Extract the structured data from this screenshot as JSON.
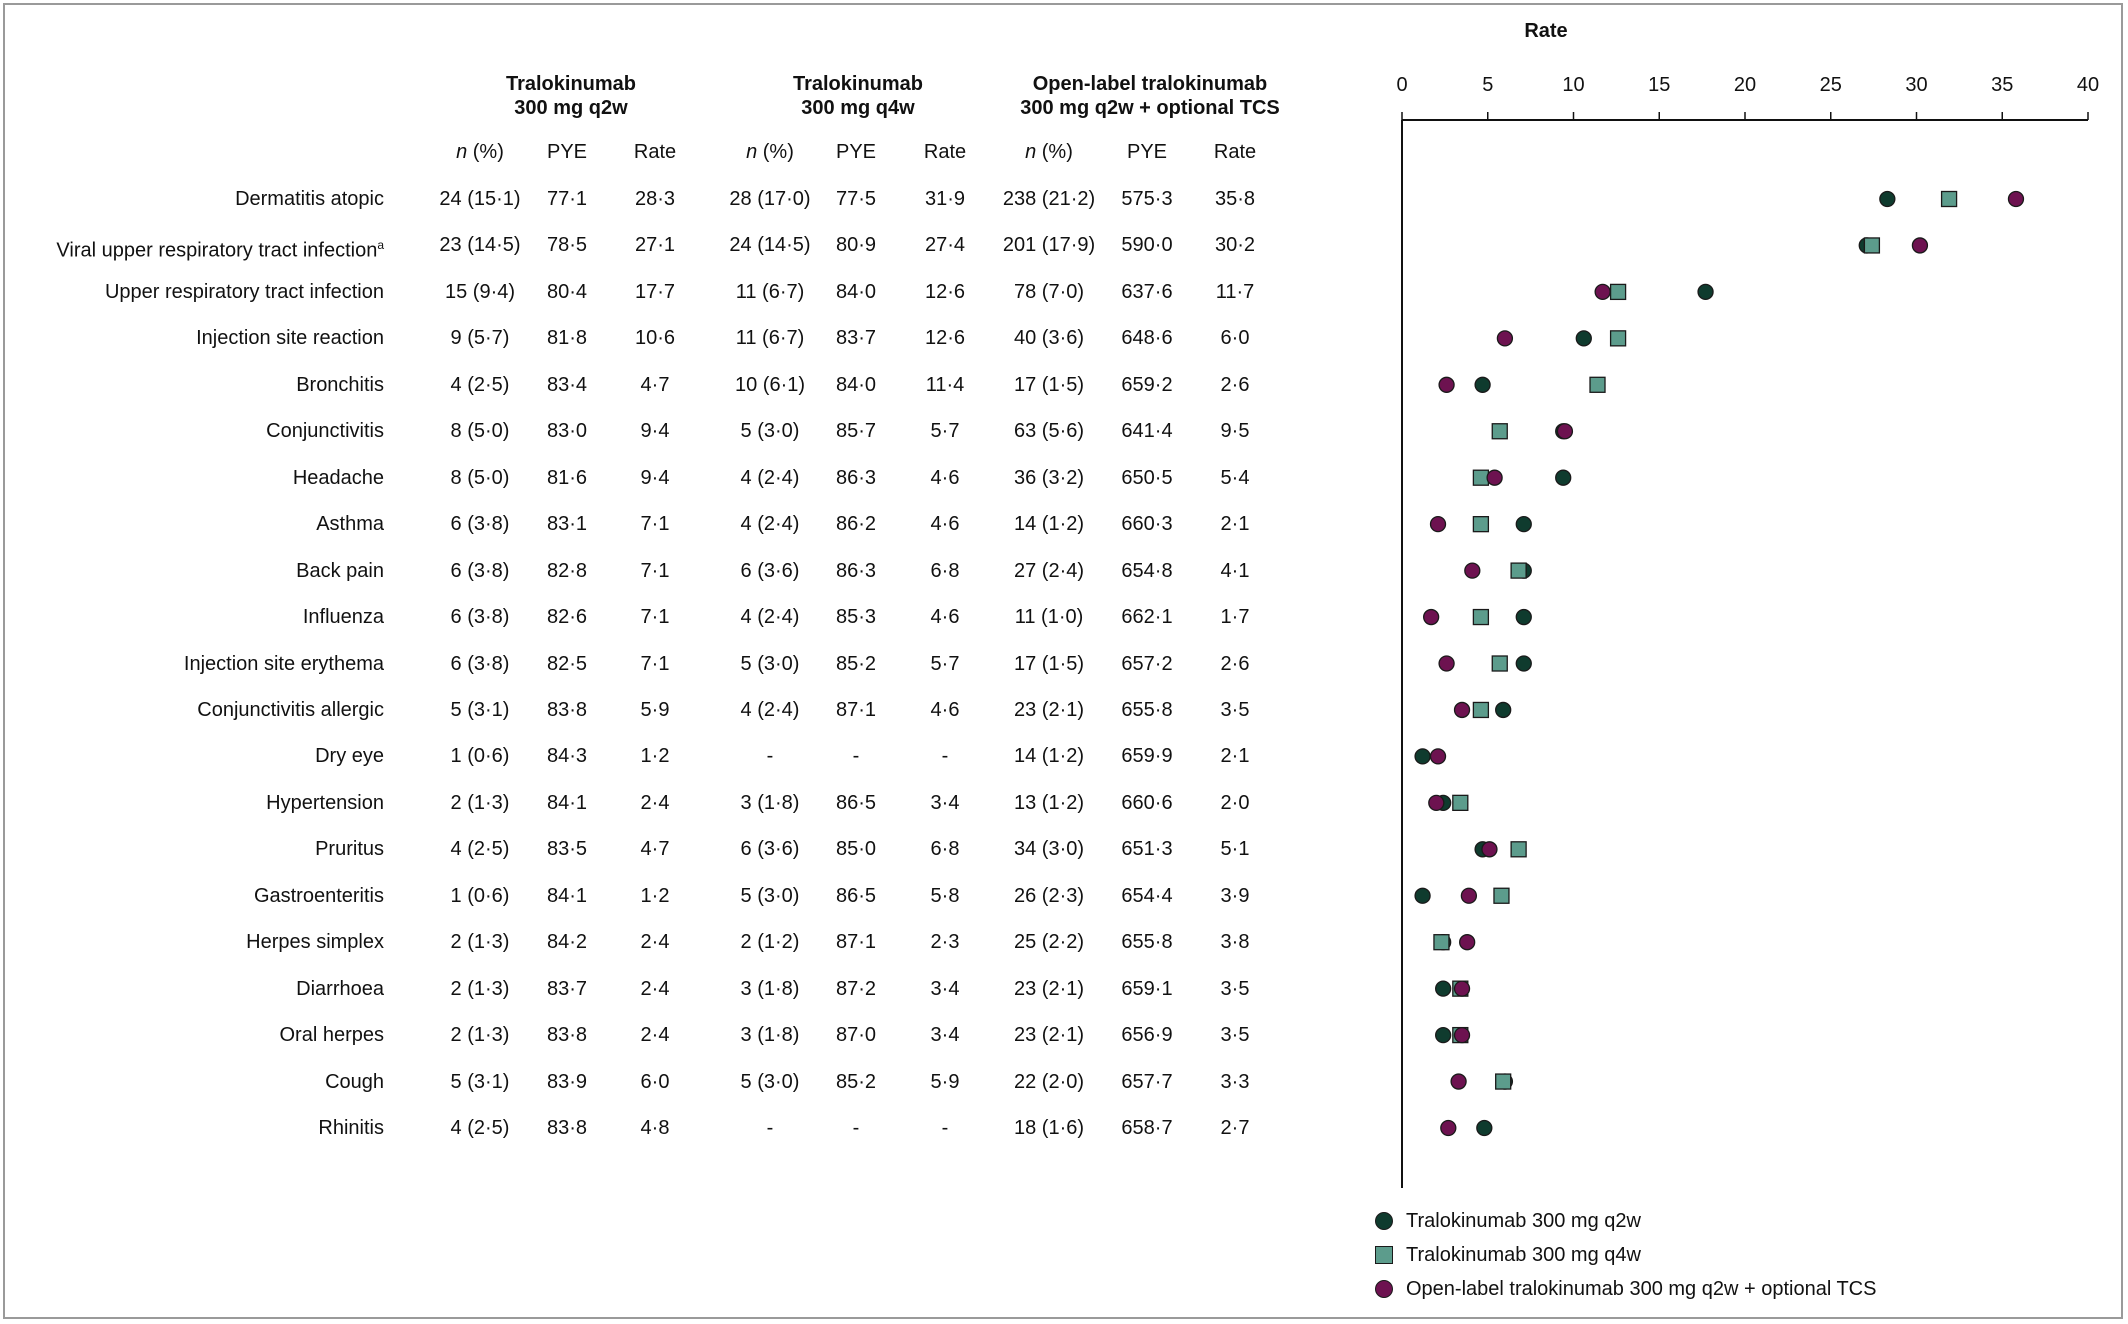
{
  "groups": [
    {
      "title": "Tralokinumab",
      "subtitle": "300 mg q2w"
    },
    {
      "title": "Tralokinumab",
      "subtitle": "300 mg q4w"
    },
    {
      "title": "Open-label tralokinumab",
      "subtitle": "300 mg q2w + optional TCS"
    }
  ],
  "column_headers": {
    "n": "n",
    "pct": " (%)",
    "pye": "PYE",
    "rate": "Rate"
  },
  "rows": [
    {
      "label": "Dermatitis atopic",
      "sup": "",
      "q2w": [
        "24 (15·1)",
        "77·1",
        "28·3"
      ],
      "q4w": [
        "28 (17·0)",
        "77·5",
        "31·9"
      ],
      "ol": [
        "238 (21·2)",
        "575·3",
        "35·8"
      ]
    },
    {
      "label": "Viral upper respiratory tract infection",
      "sup": "a",
      "q2w": [
        "23 (14·5)",
        "78·5",
        "27·1"
      ],
      "q4w": [
        "24 (14·5)",
        "80·9",
        "27·4"
      ],
      "ol": [
        "201 (17·9)",
        "590·0",
        "30·2"
      ]
    },
    {
      "label": "Upper respiratory tract infection",
      "sup": "",
      "q2w": [
        "15 (9·4)",
        "80·4",
        "17·7"
      ],
      "q4w": [
        "11 (6·7)",
        "84·0",
        "12·6"
      ],
      "ol": [
        "78 (7·0)",
        "637·6",
        "11·7"
      ]
    },
    {
      "label": "Injection site reaction",
      "sup": "",
      "q2w": [
        "9 (5·7)",
        "81·8",
        "10·6"
      ],
      "q4w": [
        "11 (6·7)",
        "83·7",
        "12·6"
      ],
      "ol": [
        "40 (3·6)",
        "648·6",
        "6·0"
      ]
    },
    {
      "label": "Bronchitis",
      "sup": "",
      "q2w": [
        "4 (2·5)",
        "83·4",
        "4·7"
      ],
      "q4w": [
        "10 (6·1)",
        "84·0",
        "11·4"
      ],
      "ol": [
        "17 (1·5)",
        "659·2",
        "2·6"
      ]
    },
    {
      "label": "Conjunctivitis",
      "sup": "",
      "q2w": [
        "8 (5·0)",
        "83·0",
        "9·4"
      ],
      "q4w": [
        "5 (3·0)",
        "85·7",
        "5·7"
      ],
      "ol": [
        "63 (5·6)",
        "641·4",
        "9·5"
      ]
    },
    {
      "label": "Headache",
      "sup": "",
      "q2w": [
        "8 (5·0)",
        "81·6",
        "9·4"
      ],
      "q4w": [
        "4 (2·4)",
        "86·3",
        "4·6"
      ],
      "ol": [
        "36 (3·2)",
        "650·5",
        "5·4"
      ]
    },
    {
      "label": "Asthma",
      "sup": "",
      "q2w": [
        "6 (3·8)",
        "83·1",
        "7·1"
      ],
      "q4w": [
        "4 (2·4)",
        "86·2",
        "4·6"
      ],
      "ol": [
        "14 (1·2)",
        "660·3",
        "2·1"
      ]
    },
    {
      "label": "Back pain",
      "sup": "",
      "q2w": [
        "6 (3·8)",
        "82·8",
        "7·1"
      ],
      "q4w": [
        "6 (3·6)",
        "86·3",
        "6·8"
      ],
      "ol": [
        "27 (2·4)",
        "654·8",
        "4·1"
      ]
    },
    {
      "label": "Influenza",
      "sup": "",
      "q2w": [
        "6 (3·8)",
        "82·6",
        "7·1"
      ],
      "q4w": [
        "4 (2·4)",
        "85·3",
        "4·6"
      ],
      "ol": [
        "11 (1·0)",
        "662·1",
        "1·7"
      ]
    },
    {
      "label": "Injection site erythema",
      "sup": "",
      "q2w": [
        "6 (3·8)",
        "82·5",
        "7·1"
      ],
      "q4w": [
        "5 (3·0)",
        "85·2",
        "5·7"
      ],
      "ol": [
        "17 (1·5)",
        "657·2",
        "2·6"
      ]
    },
    {
      "label": "Conjunctivitis allergic",
      "sup": "",
      "q2w": [
        "5 (3·1)",
        "83·8",
        "5·9"
      ],
      "q4w": [
        "4 (2·4)",
        "87·1",
        "4·6"
      ],
      "ol": [
        "23 (2·1)",
        "655·8",
        "3·5"
      ]
    },
    {
      "label": "Dry eye",
      "sup": "",
      "q2w": [
        "1 (0·6)",
        "84·3",
        "1·2"
      ],
      "q4w": [
        "-",
        "-",
        "-"
      ],
      "ol": [
        "14 (1·2)",
        "659·9",
        "2·1"
      ]
    },
    {
      "label": "Hypertension",
      "sup": "",
      "q2w": [
        "2 (1·3)",
        "84·1",
        "2·4"
      ],
      "q4w": [
        "3 (1·8)",
        "86·5",
        "3·4"
      ],
      "ol": [
        "13 (1·2)",
        "660·6",
        "2·0"
      ]
    },
    {
      "label": "Pruritus",
      "sup": "",
      "q2w": [
        "4 (2·5)",
        "83·5",
        "4·7"
      ],
      "q4w": [
        "6 (3·6)",
        "85·0",
        "6·8"
      ],
      "ol": [
        "34 (3·0)",
        "651·3",
        "5·1"
      ]
    },
    {
      "label": "Gastroenteritis",
      "sup": "",
      "q2w": [
        "1 (0·6)",
        "84·1",
        "1·2"
      ],
      "q4w": [
        "5 (3·0)",
        "86·5",
        "5·8"
      ],
      "ol": [
        "26 (2·3)",
        "654·4",
        "3·9"
      ]
    },
    {
      "label": "Herpes simplex",
      "sup": "",
      "q2w": [
        "2 (1·3)",
        "84·2",
        "2·4"
      ],
      "q4w": [
        "2 (1·2)",
        "87·1",
        "2·3"
      ],
      "ol": [
        "25 (2·2)",
        "655·8",
        "3·8"
      ]
    },
    {
      "label": "Diarrhoea",
      "sup": "",
      "q2w": [
        "2 (1·3)",
        "83·7",
        "2·4"
      ],
      "q4w": [
        "3 (1·8)",
        "87·2",
        "3·4"
      ],
      "ol": [
        "23 (2·1)",
        "659·1",
        "3·5"
      ]
    },
    {
      "label": "Oral herpes",
      "sup": "",
      "q2w": [
        "2 (1·3)",
        "83·8",
        "2·4"
      ],
      "q4w": [
        "3 (1·8)",
        "87·0",
        "3·4"
      ],
      "ol": [
        "23 (2·1)",
        "656·9",
        "3·5"
      ]
    },
    {
      "label": "Cough",
      "sup": "",
      "q2w": [
        "5 (3·1)",
        "83·9",
        "6·0"
      ],
      "q4w": [
        "5 (3·0)",
        "85·2",
        "5·9"
      ],
      "ol": [
        "22 (2·0)",
        "657·7",
        "3·3"
      ]
    },
    {
      "label": "Rhinitis",
      "sup": "",
      "q2w": [
        "4 (2·5)",
        "83·8",
        "4·8"
      ],
      "q4w": [
        "-",
        "-",
        "-"
      ],
      "ol": [
        "18 (1·6)",
        "658·7",
        "2·7"
      ]
    }
  ],
  "chart_data": {
    "type": "scatter",
    "title": "Rate",
    "xlim": [
      0,
      40
    ],
    "xticks": [
      0,
      5,
      10,
      15,
      20,
      25,
      30,
      35,
      40
    ],
    "axis_position": "top",
    "grid": false,
    "legend_position": "bottom",
    "categories": [
      "Dermatitis atopic",
      "Viral upper respiratory tract infection",
      "Upper respiratory tract infection",
      "Injection site reaction",
      "Bronchitis",
      "Conjunctivitis",
      "Headache",
      "Asthma",
      "Back pain",
      "Influenza",
      "Injection site erythema",
      "Conjunctivitis allergic",
      "Dry eye",
      "Hypertension",
      "Pruritus",
      "Gastroenteritis",
      "Herpes simplex",
      "Diarrhoea",
      "Oral herpes",
      "Cough",
      "Rhinitis"
    ],
    "series": [
      {
        "name": "Tralokinumab 300 mg q2w",
        "marker": "circle",
        "color": "#0f3b2e",
        "values": [
          28.3,
          27.1,
          17.7,
          10.6,
          4.7,
          9.4,
          9.4,
          7.1,
          7.1,
          7.1,
          7.1,
          5.9,
          1.2,
          2.4,
          4.7,
          1.2,
          2.4,
          2.4,
          2.4,
          6.0,
          4.8
        ]
      },
      {
        "name": "Tralokinumab 300 mg q4w",
        "marker": "square",
        "color": "#5c9c8c",
        "values": [
          31.9,
          27.4,
          12.6,
          12.6,
          11.4,
          5.7,
          4.6,
          4.6,
          6.8,
          4.6,
          5.7,
          4.6,
          null,
          3.4,
          6.8,
          5.8,
          2.3,
          3.4,
          3.4,
          5.9,
          null
        ]
      },
      {
        "name": "Open-label tralokinumab 300 mg q2w + optional TCS",
        "marker": "circle",
        "color": "#6d1250",
        "values": [
          35.8,
          30.2,
          11.7,
          6.0,
          2.6,
          9.5,
          5.4,
          2.1,
          4.1,
          1.7,
          2.6,
          3.5,
          2.1,
          2.0,
          5.1,
          3.9,
          3.8,
          3.5,
          3.5,
          3.3,
          2.7
        ]
      }
    ]
  }
}
